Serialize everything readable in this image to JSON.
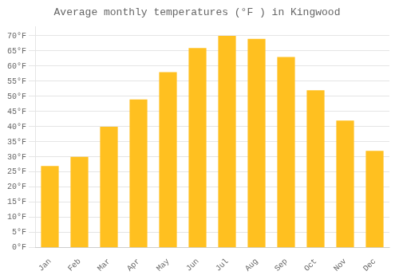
{
  "chart_data": {
    "type": "bar",
    "title": "Average monthly temperatures (°F ) in Kingwood",
    "categories": [
      "Jan",
      "Feb",
      "Mar",
      "Apr",
      "May",
      "Jun",
      "Jul",
      "Aug",
      "Sep",
      "Oct",
      "Nov",
      "Dec"
    ],
    "values": [
      27,
      30,
      40,
      49,
      58,
      66,
      70,
      69,
      63,
      52,
      42,
      32
    ],
    "color": "#FFC020",
    "ylim": [
      0,
      73
    ],
    "yticks": [
      {
        "value": 0,
        "label": "0°F"
      },
      {
        "value": 5,
        "label": "5°F"
      },
      {
        "value": 10,
        "label": "10°F"
      },
      {
        "value": 15,
        "label": "15°F"
      },
      {
        "value": 20,
        "label": "20°F"
      },
      {
        "value": 25,
        "label": "25°F"
      },
      {
        "value": 30,
        "label": "30°F"
      },
      {
        "value": 35,
        "label": "35°F"
      },
      {
        "value": 40,
        "label": "40°F"
      },
      {
        "value": 45,
        "label": "45°F"
      },
      {
        "value": 50,
        "label": "50°F"
      },
      {
        "value": 55,
        "label": "55°F"
      },
      {
        "value": 60,
        "label": "60°F"
      },
      {
        "value": 65,
        "label": "65°F"
      },
      {
        "value": 70,
        "label": "70°F"
      }
    ],
    "grid": true
  }
}
